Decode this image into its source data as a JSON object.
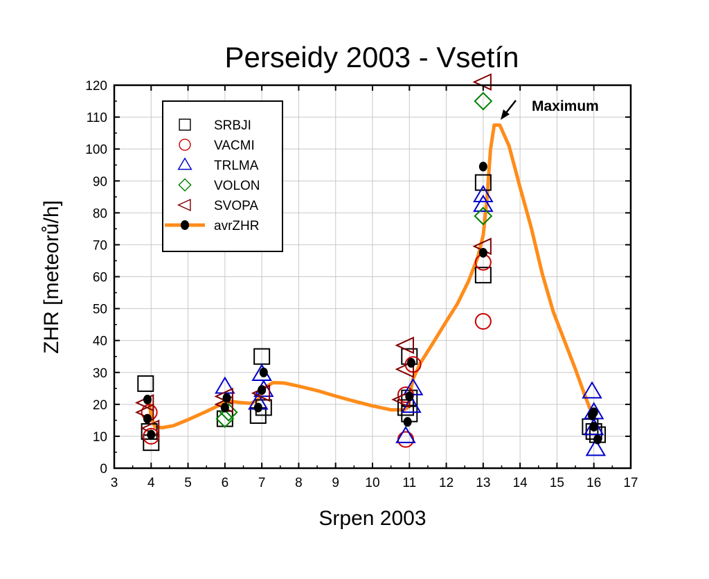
{
  "chart_data": {
    "type": "scatter",
    "title": "Perseidy 2003 - Vsetín",
    "xlabel": "Srpen 2003",
    "ylabel": "ZHR [meteorů/h]",
    "xlim": [
      3,
      17
    ],
    "ylim": [
      0,
      120
    ],
    "xticks": [
      3,
      4,
      5,
      6,
      7,
      8,
      9,
      10,
      11,
      12,
      13,
      14,
      15,
      16,
      17
    ],
    "yticks": [
      0,
      10,
      20,
      30,
      40,
      50,
      60,
      70,
      80,
      90,
      100,
      110,
      120
    ],
    "grid": true,
    "legend_position": "top-left",
    "annotation": {
      "text": "Maximum",
      "x": 13.3,
      "y": 108
    },
    "series": [
      {
        "name": "SRBJI",
        "marker": "square",
        "color": "#000000",
        "points": [
          [
            3.85,
            26.5
          ],
          [
            3.95,
            11.5
          ],
          [
            4.0,
            8.0
          ],
          [
            6.0,
            15.5
          ],
          [
            6.9,
            16.5
          ],
          [
            7.0,
            35.0
          ],
          [
            7.05,
            19.0
          ],
          [
            10.9,
            19.0
          ],
          [
            11.0,
            17.0
          ],
          [
            11.0,
            22.0
          ],
          [
            11.0,
            35.0
          ],
          [
            13.0,
            89.5
          ],
          [
            13.0,
            60.5
          ],
          [
            15.9,
            13.0
          ],
          [
            16.0,
            11.5
          ],
          [
            16.1,
            10.5
          ]
        ]
      },
      {
        "name": "VACMI",
        "marker": "circle",
        "color": "#cc0000",
        "points": [
          [
            3.95,
            17.5
          ],
          [
            4.0,
            10.0
          ],
          [
            10.9,
            9.0
          ],
          [
            10.9,
            23.0
          ],
          [
            11.1,
            32.5
          ],
          [
            13.0,
            64.5
          ],
          [
            13.0,
            46.0
          ]
        ]
      },
      {
        "name": "TRLMA",
        "marker": "triangle-up",
        "color": "#0000cc",
        "points": [
          [
            6.0,
            25.5
          ],
          [
            6.9,
            20.5
          ],
          [
            7.0,
            29.5
          ],
          [
            7.05,
            24.5
          ],
          [
            10.9,
            10.0
          ],
          [
            11.05,
            19.5
          ],
          [
            11.1,
            25.0
          ],
          [
            13.0,
            82.5
          ],
          [
            13.0,
            85.5
          ],
          [
            15.95,
            24.0
          ],
          [
            16.0,
            17.5
          ],
          [
            16.0,
            12.5
          ],
          [
            16.05,
            6.0
          ]
        ]
      },
      {
        "name": "VOLON",
        "marker": "diamond",
        "color": "#008000",
        "points": [
          [
            6.0,
            15.5
          ],
          [
            6.1,
            17.5
          ],
          [
            13.0,
            115.0
          ],
          [
            13.0,
            79.0
          ]
        ]
      },
      {
        "name": "SVOPA",
        "marker": "triangle-left",
        "color": "#800000",
        "points": [
          [
            3.85,
            20.5
          ],
          [
            3.85,
            17.5
          ],
          [
            4.0,
            12.5
          ],
          [
            6.0,
            22.5
          ],
          [
            6.0,
            20.0
          ],
          [
            7.0,
            23.5
          ],
          [
            10.9,
            38.5
          ],
          [
            10.9,
            31.0
          ],
          [
            10.8,
            21.5
          ],
          [
            13.0,
            69.5
          ],
          [
            13.0,
            121.0
          ]
        ]
      },
      {
        "name": "avrZHR",
        "marker": "filled-circle",
        "color": "#000000",
        "line_color": "#ff8c1a",
        "points": [
          [
            3.9,
            21.5
          ],
          [
            3.9,
            15.5
          ],
          [
            4.0,
            10.5
          ],
          [
            6.0,
            19.0
          ],
          [
            6.05,
            22.0
          ],
          [
            6.9,
            19.0
          ],
          [
            7.0,
            24.5
          ],
          [
            7.05,
            30.0
          ],
          [
            10.95,
            14.5
          ],
          [
            11.0,
            22.5
          ],
          [
            11.05,
            33.0
          ],
          [
            13.0,
            94.5
          ],
          [
            13.0,
            67.5
          ],
          [
            15.95,
            16.5
          ],
          [
            16.0,
            17.5
          ],
          [
            16.0,
            13.0
          ],
          [
            16.1,
            9.0
          ]
        ],
        "trend": [
          [
            3.95,
            21.0
          ],
          [
            4.0,
            16.0
          ],
          [
            4.1,
            13.0
          ],
          [
            4.3,
            12.7
          ],
          [
            4.6,
            13.3
          ],
          [
            5.0,
            15.2
          ],
          [
            5.5,
            17.8
          ],
          [
            5.9,
            20.0
          ],
          [
            6.1,
            21.0
          ],
          [
            6.4,
            20.6
          ],
          [
            6.7,
            20.3
          ],
          [
            6.9,
            21.5
          ],
          [
            7.05,
            25.0
          ],
          [
            7.3,
            26.8
          ],
          [
            7.6,
            26.7
          ],
          [
            8.0,
            25.7
          ],
          [
            8.5,
            24.3
          ],
          [
            9.0,
            22.6
          ],
          [
            9.5,
            21.0
          ],
          [
            10.0,
            19.5
          ],
          [
            10.5,
            18.3
          ],
          [
            10.85,
            18.3
          ],
          [
            10.95,
            19.0
          ],
          [
            11.02,
            23.5
          ],
          [
            11.1,
            28.0
          ],
          [
            11.3,
            33.0
          ],
          [
            11.6,
            38.5
          ],
          [
            12.0,
            46.0
          ],
          [
            12.3,
            51.5
          ],
          [
            12.6,
            58.5
          ],
          [
            12.85,
            66.0
          ],
          [
            13.0,
            73.0
          ],
          [
            13.1,
            84.0
          ],
          [
            13.2,
            100.0
          ],
          [
            13.3,
            107.5
          ],
          [
            13.45,
            107.5
          ],
          [
            13.7,
            101.0
          ],
          [
            14.0,
            88.0
          ],
          [
            14.3,
            75.5
          ],
          [
            14.6,
            61.0
          ],
          [
            14.9,
            49.0
          ],
          [
            15.2,
            40.0
          ],
          [
            15.5,
            31.0
          ],
          [
            15.75,
            23.0
          ],
          [
            15.95,
            17.0
          ]
        ]
      }
    ]
  }
}
